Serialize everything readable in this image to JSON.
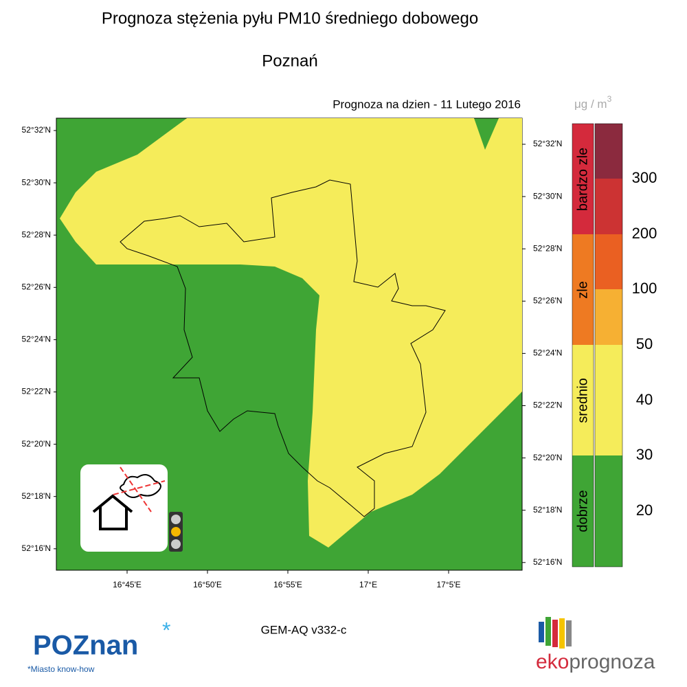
{
  "header": {
    "title": "Prognoza stężenia pyłu PM10 średniego dobowego",
    "subtitle": "Poznań",
    "forecast_date": "Prognoza na dzien -  11 Lutego 2016"
  },
  "unit": {
    "base": "μg / m",
    "exponent": "3"
  },
  "map": {
    "lat_labels_left": [
      "52°32'N",
      "52°30'N",
      "52°28'N",
      "52°26'N",
      "52°24'N",
      "52°22'N",
      "52°20'N",
      "52°18'N",
      "52°16'N"
    ],
    "lat_labels_right": [
      "52°32'N",
      "52°30'N",
      "52°28'N",
      "52°26'N",
      "52°24'N",
      "52°22'N",
      "52°20'N",
      "52°18'N",
      "52°16'N"
    ],
    "lon_labels": [
      "16°45'E",
      "16°50'E",
      "16°55'E",
      "17°E",
      "17°5'E"
    ]
  },
  "legend": {
    "categories": [
      "bardzo zle",
      "zle",
      "srednio",
      "dobrze"
    ],
    "scale_labels": [
      300,
      200,
      100,
      50,
      40,
      30,
      20
    ]
  },
  "footer": {
    "model": "GEM-AQ v332-c",
    "poznan_logo": "POZnan",
    "poznan_tagline": "*Miasto know-how",
    "eko_logo_1": "eko",
    "eko_logo_2": "prognoza"
  }
}
